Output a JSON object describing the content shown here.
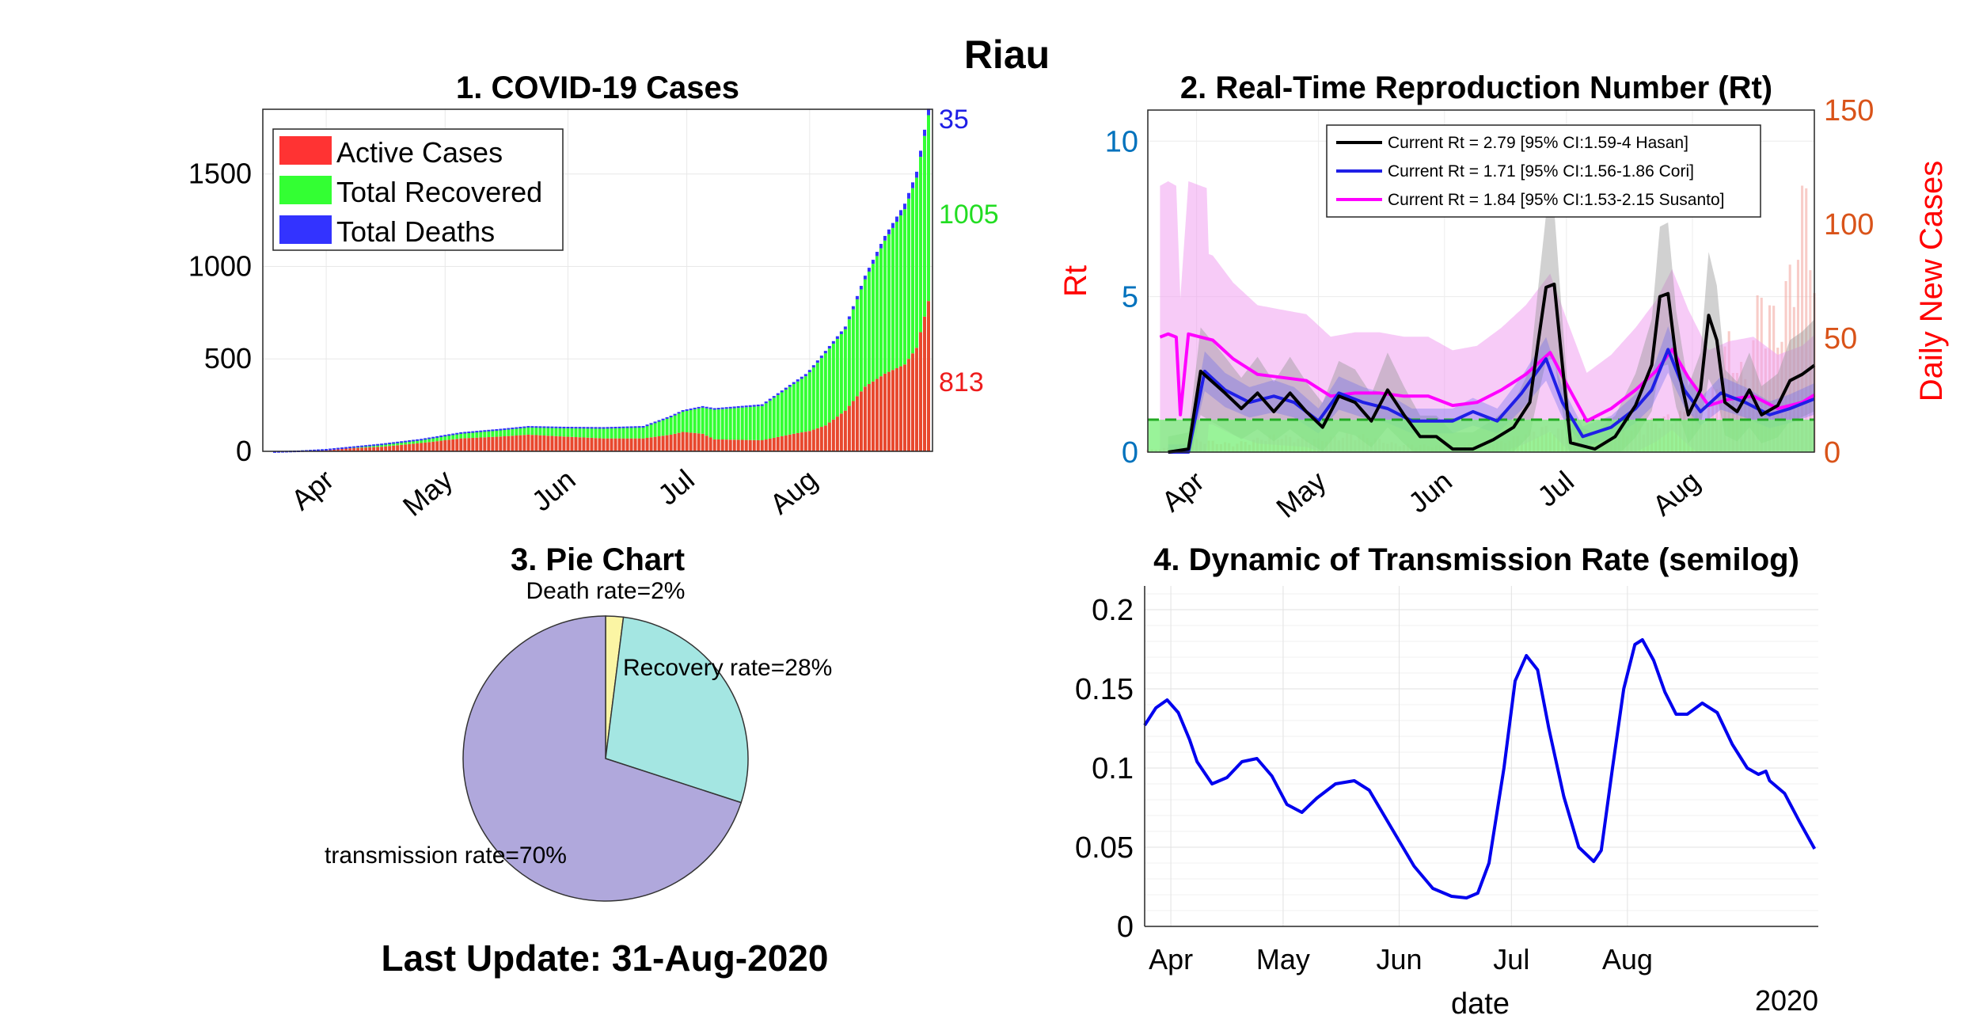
{
  "figure_title": "Riau",
  "last_update": "Last Update: 31-Aug-2020",
  "colors": {
    "active": "#ff3333",
    "recovered": "#33ff33",
    "deaths": "#3333ff",
    "rt_axis": "#0072bd",
    "cases_axis": "#d95319",
    "hasan": "#000000",
    "cori": "#1f1fe6",
    "susanto": "#ff00ff",
    "pie_transmission": "#b0a8dc",
    "pie_recovery": "#a4e6e2",
    "pie_death": "#fbf5a4",
    "trans_line": "#0000ee"
  },
  "chart_data": [
    {
      "id": "cases",
      "type": "bar",
      "title": "1. COVID-19 Cases",
      "x_ticks": [
        "Apr",
        "May",
        "Jun",
        "Jul",
        "Aug"
      ],
      "y_ticks": [
        "0",
        "500",
        "1000",
        "1500"
      ],
      "ylim": [
        0,
        1850
      ],
      "legend": [
        "Active Cases",
        "Total Recovered",
        "Total Deaths"
      ],
      "legend_position": "top-left",
      "end_labels": {
        "deaths": "35",
        "recovered": "1005",
        "active": "813"
      },
      "start_date": "2020-03-18",
      "end_date": "2020-08-31",
      "series": [
        {
          "name": "Active Cases",
          "points": [
            [
              "2020-03-18",
              0
            ],
            [
              "2020-03-25",
              3
            ],
            [
              "2020-04-01",
              10
            ],
            [
              "2020-04-15",
              25
            ],
            [
              "2020-04-25",
              45
            ],
            [
              "2020-05-05",
              70
            ],
            [
              "2020-05-15",
              80
            ],
            [
              "2020-05-22",
              90
            ],
            [
              "2020-05-31",
              80
            ],
            [
              "2020-06-10",
              70
            ],
            [
              "2020-06-20",
              70
            ],
            [
              "2020-06-27",
              90
            ],
            [
              "2020-06-30",
              105
            ],
            [
              "2020-07-05",
              95
            ],
            [
              "2020-07-08",
              65
            ],
            [
              "2020-07-20",
              60
            ],
            [
              "2020-07-28",
              95
            ],
            [
              "2020-08-01",
              110
            ],
            [
              "2020-08-05",
              140
            ],
            [
              "2020-08-10",
              220
            ],
            [
              "2020-08-15",
              350
            ],
            [
              "2020-08-20",
              420
            ],
            [
              "2020-08-25",
              470
            ],
            [
              "2020-08-28",
              560
            ],
            [
              "2020-08-31",
              813
            ]
          ]
        },
        {
          "name": "Total Recovered",
          "points": [
            [
              "2020-03-18",
              0
            ],
            [
              "2020-04-01",
              2
            ],
            [
              "2020-04-15",
              15
            ],
            [
              "2020-04-25",
              20
            ],
            [
              "2020-05-05",
              30
            ],
            [
              "2020-05-15",
              38
            ],
            [
              "2020-05-31",
              48
            ],
            [
              "2020-06-10",
              55
            ],
            [
              "2020-06-20",
              60
            ],
            [
              "2020-06-30",
              110
            ],
            [
              "2020-07-08",
              160
            ],
            [
              "2020-07-20",
              185
            ],
            [
              "2020-07-31",
              300
            ],
            [
              "2020-08-05",
              390
            ],
            [
              "2020-08-10",
              440
            ],
            [
              "2020-08-15",
              580
            ],
            [
              "2020-08-20",
              720
            ],
            [
              "2020-08-25",
              840
            ],
            [
              "2020-08-28",
              920
            ],
            [
              "2020-08-31",
              1005
            ]
          ]
        },
        {
          "name": "Total Deaths",
          "points": [
            [
              "2020-03-18",
              0
            ],
            [
              "2020-04-05",
              1
            ],
            [
              "2020-05-01",
              3
            ],
            [
              "2020-06-01",
              5
            ],
            [
              "2020-07-01",
              8
            ],
            [
              "2020-07-25",
              10
            ],
            [
              "2020-08-10",
              15
            ],
            [
              "2020-08-20",
              25
            ],
            [
              "2020-08-31",
              35
            ]
          ]
        }
      ]
    },
    {
      "id": "rt",
      "type": "line",
      "title": "2. Real-Time Reproduction Number (Rt)",
      "ylabel": "Rt",
      "ylabel_right": "Daily New Cases",
      "x_ticks": [
        "Apr",
        "May",
        "Jun",
        "Jul",
        "Aug"
      ],
      "y_ticks": [
        "0",
        "5",
        "10"
      ],
      "y_ticks_right": [
        "0",
        "50",
        "100",
        "150"
      ],
      "ylim": [
        0,
        11
      ],
      "ylim_right": [
        0,
        150
      ],
      "threshold": 1,
      "legend_position": "top-right",
      "series": [
        {
          "name": "Current Rt = 2.79 [95% CI:1.59-4 Hasan]",
          "points": [
            [
              "2020-03-25",
              0
            ],
            [
              "2020-03-30",
              0.1
            ],
            [
              "2020-04-02",
              2.6
            ],
            [
              "2020-04-08",
              1.9
            ],
            [
              "2020-04-12",
              1.4
            ],
            [
              "2020-04-16",
              1.9
            ],
            [
              "2020-04-20",
              1.3
            ],
            [
              "2020-04-24",
              1.9
            ],
            [
              "2020-04-28",
              1.3
            ],
            [
              "2020-05-02",
              0.8
            ],
            [
              "2020-05-06",
              1.8
            ],
            [
              "2020-05-10",
              1.6
            ],
            [
              "2020-05-14",
              1.0
            ],
            [
              "2020-05-18",
              2.0
            ],
            [
              "2020-05-22",
              1.2
            ],
            [
              "2020-05-26",
              0.5
            ],
            [
              "2020-05-30",
              0.5
            ],
            [
              "2020-06-03",
              0.1
            ],
            [
              "2020-06-08",
              0.1
            ],
            [
              "2020-06-13",
              0.4
            ],
            [
              "2020-06-18",
              0.8
            ],
            [
              "2020-06-22",
              1.6
            ],
            [
              "2020-06-24",
              3.5
            ],
            [
              "2020-06-26",
              5.3
            ],
            [
              "2020-06-28",
              5.4
            ],
            [
              "2020-06-30",
              2.8
            ],
            [
              "2020-07-02",
              0.3
            ],
            [
              "2020-07-08",
              0.1
            ],
            [
              "2020-07-13",
              0.5
            ],
            [
              "2020-07-18",
              1.5
            ],
            [
              "2020-07-22",
              2.8
            ],
            [
              "2020-07-24",
              5.0
            ],
            [
              "2020-07-26",
              5.1
            ],
            [
              "2020-07-28",
              3.0
            ],
            [
              "2020-07-31",
              1.2
            ],
            [
              "2020-08-03",
              2.0
            ],
            [
              "2020-08-05",
              4.4
            ],
            [
              "2020-08-07",
              3.6
            ],
            [
              "2020-08-09",
              1.6
            ],
            [
              "2020-08-12",
              1.3
            ],
            [
              "2020-08-15",
              2.0
            ],
            [
              "2020-08-18",
              1.2
            ],
            [
              "2020-08-22",
              1.5
            ],
            [
              "2020-08-25",
              2.3
            ],
            [
              "2020-08-28",
              2.5
            ],
            [
              "2020-08-31",
              2.79
            ]
          ]
        },
        {
          "name": "Current Rt = 1.71 [95% CI:1.56-1.86 Cori]",
          "points": [
            [
              "2020-03-25",
              0
            ],
            [
              "2020-03-30",
              0
            ],
            [
              "2020-04-03",
              2.6
            ],
            [
              "2020-04-08",
              2.0
            ],
            [
              "2020-04-14",
              1.6
            ],
            [
              "2020-04-20",
              1.8
            ],
            [
              "2020-04-25",
              1.6
            ],
            [
              "2020-05-01",
              1.0
            ],
            [
              "2020-05-06",
              1.9
            ],
            [
              "2020-05-12",
              1.6
            ],
            [
              "2020-05-18",
              1.4
            ],
            [
              "2020-05-24",
              1.0
            ],
            [
              "2020-06-03",
              1.0
            ],
            [
              "2020-06-08",
              1.3
            ],
            [
              "2020-06-14",
              1.0
            ],
            [
              "2020-06-20",
              1.9
            ],
            [
              "2020-06-26",
              3.0
            ],
            [
              "2020-06-30",
              1.6
            ],
            [
              "2020-07-05",
              0.5
            ],
            [
              "2020-07-12",
              0.8
            ],
            [
              "2020-07-18",
              1.4
            ],
            [
              "2020-07-22",
              2.0
            ],
            [
              "2020-07-26",
              3.3
            ],
            [
              "2020-07-30",
              2.0
            ],
            [
              "2020-08-03",
              1.3
            ],
            [
              "2020-08-08",
              1.9
            ],
            [
              "2020-08-14",
              1.6
            ],
            [
              "2020-08-20",
              1.2
            ],
            [
              "2020-08-25",
              1.4
            ],
            [
              "2020-08-31",
              1.71
            ]
          ]
        },
        {
          "name": "Current Rt = 1.84 [95% CI:1.53-2.15 Susanto]",
          "points": [
            [
              "2020-03-23",
              3.7
            ],
            [
              "2020-03-25",
              3.8
            ],
            [
              "2020-03-27",
              3.7
            ],
            [
              "2020-03-28",
              1.2
            ],
            [
              "2020-03-30",
              3.8
            ],
            [
              "2020-04-05",
              3.6
            ],
            [
              "2020-04-10",
              3.0
            ],
            [
              "2020-04-16",
              2.5
            ],
            [
              "2020-04-22",
              2.4
            ],
            [
              "2020-04-28",
              2.3
            ],
            [
              "2020-05-04",
              1.8
            ],
            [
              "2020-05-10",
              1.9
            ],
            [
              "2020-05-16",
              1.9
            ],
            [
              "2020-05-22",
              1.8
            ],
            [
              "2020-05-28",
              1.8
            ],
            [
              "2020-06-03",
              1.5
            ],
            [
              "2020-06-09",
              1.6
            ],
            [
              "2020-06-15",
              2.0
            ],
            [
              "2020-06-21",
              2.5
            ],
            [
              "2020-06-27",
              3.2
            ],
            [
              "2020-07-01",
              2.2
            ],
            [
              "2020-07-06",
              1.0
            ],
            [
              "2020-07-12",
              1.4
            ],
            [
              "2020-07-18",
              2.0
            ],
            [
              "2020-07-23",
              2.6
            ],
            [
              "2020-07-27",
              3.3
            ],
            [
              "2020-07-31",
              2.4
            ],
            [
              "2020-08-05",
              1.5
            ],
            [
              "2020-08-10",
              1.7
            ],
            [
              "2020-08-16",
              1.8
            ],
            [
              "2020-08-22",
              1.4
            ],
            [
              "2020-08-28",
              1.6
            ],
            [
              "2020-08-31",
              1.84
            ]
          ]
        }
      ],
      "daily_new_cases": [
        [
          "2020-03-20",
          1
        ],
        [
          "2020-03-25",
          2
        ],
        [
          "2020-04-01",
          6
        ],
        [
          "2020-04-10",
          4
        ],
        [
          "2020-04-20",
          8
        ],
        [
          "2020-05-01",
          6
        ],
        [
          "2020-05-10",
          9
        ],
        [
          "2020-05-20",
          4
        ],
        [
          "2020-06-01",
          3
        ],
        [
          "2020-06-15",
          5
        ],
        [
          "2020-06-25",
          12
        ],
        [
          "2020-07-01",
          10
        ],
        [
          "2020-07-10",
          6
        ],
        [
          "2020-07-20",
          14
        ],
        [
          "2020-07-28",
          18
        ],
        [
          "2020-08-05",
          22
        ],
        [
          "2020-08-10",
          55
        ],
        [
          "2020-08-14",
          35
        ],
        [
          "2020-08-18",
          80
        ],
        [
          "2020-08-22",
          60
        ],
        [
          "2020-08-26",
          95
        ],
        [
          "2020-08-30",
          140
        ],
        [
          "2020-08-31",
          80
        ]
      ]
    },
    {
      "id": "pie",
      "type": "pie",
      "title": "3. Pie Chart",
      "slices": [
        {
          "name": "Death rate",
          "value": 2,
          "label": "Death rate=2%"
        },
        {
          "name": "Recovery rate",
          "value": 28,
          "label": "Recovery rate=28%"
        },
        {
          "name": "transmission rate",
          "value": 70,
          "label": "transmission rate=70%"
        }
      ]
    },
    {
      "id": "transmission",
      "type": "line",
      "title": "4. Dynamic of Transmission Rate (semilog)",
      "xlabel": "date",
      "x_ticks": [
        "Apr",
        "May",
        "Jun",
        "Jul",
        "Aug"
      ],
      "x_year": "2020",
      "y_ticks": [
        "0",
        "0.05",
        "0.1",
        "0.15",
        "0.2"
      ],
      "ylim": [
        0,
        0.215
      ],
      "grid": true,
      "points": [
        [
          "2020-03-25",
          0.127
        ],
        [
          "2020-03-28",
          0.138
        ],
        [
          "2020-03-31",
          0.143
        ],
        [
          "2020-04-03",
          0.135
        ],
        [
          "2020-04-06",
          0.118
        ],
        [
          "2020-04-08",
          0.104
        ],
        [
          "2020-04-12",
          0.09
        ],
        [
          "2020-04-16",
          0.094
        ],
        [
          "2020-04-20",
          0.104
        ],
        [
          "2020-04-24",
          0.106
        ],
        [
          "2020-04-28",
          0.095
        ],
        [
          "2020-05-02",
          0.077
        ],
        [
          "2020-05-06",
          0.072
        ],
        [
          "2020-05-10",
          0.081
        ],
        [
          "2020-05-15",
          0.09
        ],
        [
          "2020-05-20",
          0.092
        ],
        [
          "2020-05-24",
          0.086
        ],
        [
          "2020-05-30",
          0.062
        ],
        [
          "2020-06-05",
          0.038
        ],
        [
          "2020-06-10",
          0.024
        ],
        [
          "2020-06-15",
          0.019
        ],
        [
          "2020-06-19",
          0.018
        ],
        [
          "2020-06-22",
          0.021
        ],
        [
          "2020-06-25",
          0.04
        ],
        [
          "2020-06-29",
          0.1
        ],
        [
          "2020-07-02",
          0.155
        ],
        [
          "2020-07-05",
          0.171
        ],
        [
          "2020-07-08",
          0.162
        ],
        [
          "2020-07-11",
          0.125
        ],
        [
          "2020-07-15",
          0.082
        ],
        [
          "2020-07-19",
          0.05
        ],
        [
          "2020-07-23",
          0.041
        ],
        [
          "2020-07-25",
          0.048
        ],
        [
          "2020-07-28",
          0.1
        ],
        [
          "2020-07-31",
          0.15
        ],
        [
          "2020-08-03",
          0.178
        ],
        [
          "2020-08-05",
          0.181
        ],
        [
          "2020-08-08",
          0.168
        ],
        [
          "2020-08-11",
          0.148
        ],
        [
          "2020-08-14",
          0.134
        ],
        [
          "2020-08-17",
          0.134
        ],
        [
          "2020-08-21",
          0.141
        ],
        [
          "2020-08-25",
          0.135
        ],
        [
          "2020-08-29",
          0.115
        ],
        [
          "2020-09-02",
          0.1
        ],
        [
          "2020-09-05",
          0.096
        ],
        [
          "2020-09-07",
          0.098
        ],
        [
          "2020-09-08",
          0.092
        ],
        [
          "2020-09-12",
          0.084
        ],
        [
          "2020-09-16",
          0.066
        ],
        [
          "2020-09-20",
          0.049
        ]
      ]
    }
  ]
}
